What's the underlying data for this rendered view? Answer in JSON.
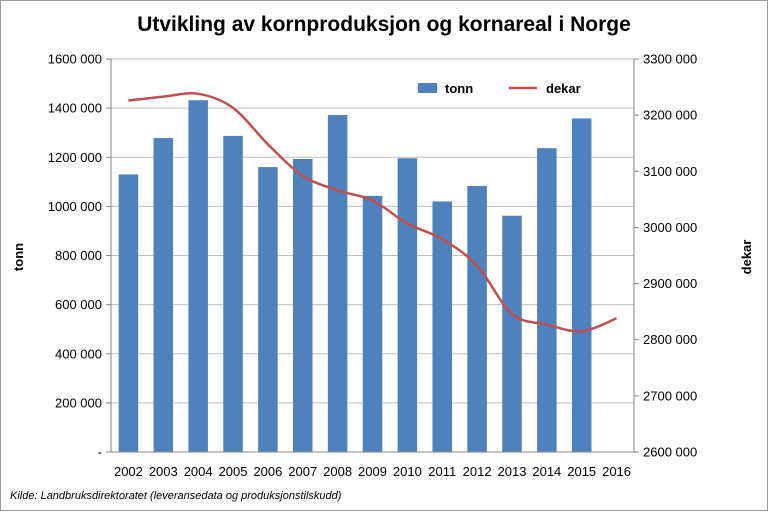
{
  "chart_data": {
    "type": "bar+line",
    "title": "Utvikling av kornproduksjon og kornareal i Norge",
    "categories": [
      "2002",
      "2003",
      "2004",
      "2005",
      "2006",
      "2007",
      "2008",
      "2009",
      "2010",
      "2011",
      "2012",
      "2013",
      "2014",
      "2015",
      "2016"
    ],
    "series": [
      {
        "name": "tonn",
        "type": "bar",
        "axis": "left",
        "color": "#4f81bd",
        "values": [
          1130000,
          1278000,
          1432000,
          1287000,
          1160000,
          1193000,
          1372000,
          1043000,
          1196000,
          1020000,
          1083000,
          962000,
          1237000,
          1358000,
          null
        ]
      },
      {
        "name": "dekar",
        "type": "line",
        "axis": "right",
        "color": "#c0504d",
        "values": [
          3226000,
          3233000,
          3238000,
          3213000,
          3148000,
          3092000,
          3066000,
          3048000,
          3007000,
          2979000,
          2932000,
          2846000,
          2827000,
          2815000,
          2838000
        ]
      }
    ],
    "ylabel": "tonn",
    "ylabel_right": "dekar",
    "ylim": [
      0,
      1600000
    ],
    "ylim_right": [
      2600000,
      3300000
    ],
    "yticks": [
      "-",
      "200 000",
      "400 000",
      "600 000",
      "800 000",
      "1000 000",
      "1200 000",
      "1400 000",
      "1600 000"
    ],
    "yticks_right": [
      "2600 000",
      "2700 000",
      "2800 000",
      "2900 000",
      "3000 000",
      "3100 000",
      "3200 000",
      "3300 000"
    ],
    "grid": true,
    "legend_position": "top-right"
  },
  "source_note": "Kilde: Landbruksdirektoratet (leveransedata og produksjonstilskudd)"
}
